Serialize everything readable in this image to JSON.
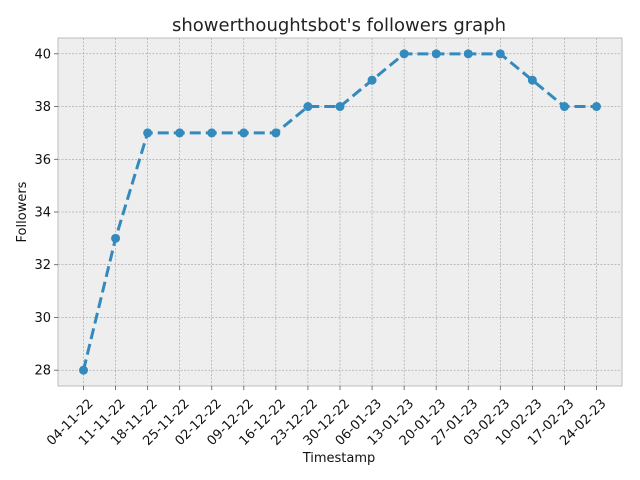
{
  "chart_data": {
    "type": "line",
    "title": "showerthoughtsbot's followers graph",
    "xlabel": "Timestamp",
    "ylabel": "Followers",
    "categories": [
      "04-11-22",
      "11-11-22",
      "18-11-22",
      "25-11-22",
      "02-12-22",
      "09-12-22",
      "16-12-22",
      "23-12-22",
      "30-12-22",
      "06-01-23",
      "13-01-23",
      "20-01-23",
      "27-01-23",
      "03-02-23",
      "10-02-23",
      "17-02-23",
      "24-02-23"
    ],
    "series": [
      {
        "values": [
          28,
          33,
          37,
          37,
          37,
          37,
          37,
          38,
          38,
          39,
          40,
          40,
          40,
          40,
          39,
          38,
          38
        ]
      }
    ],
    "ylim": [
      27.4,
      40.6
    ],
    "yticks": [
      "28",
      "30",
      "32",
      "34",
      "36",
      "38",
      "40"
    ],
    "grid": true,
    "line_style": "dashed",
    "marker": "circle",
    "colors": {
      "line": "#348abd",
      "plot_bg": "#eeeeee",
      "grid": "#8c8c8c",
      "frame": "#bcbcbc"
    }
  }
}
